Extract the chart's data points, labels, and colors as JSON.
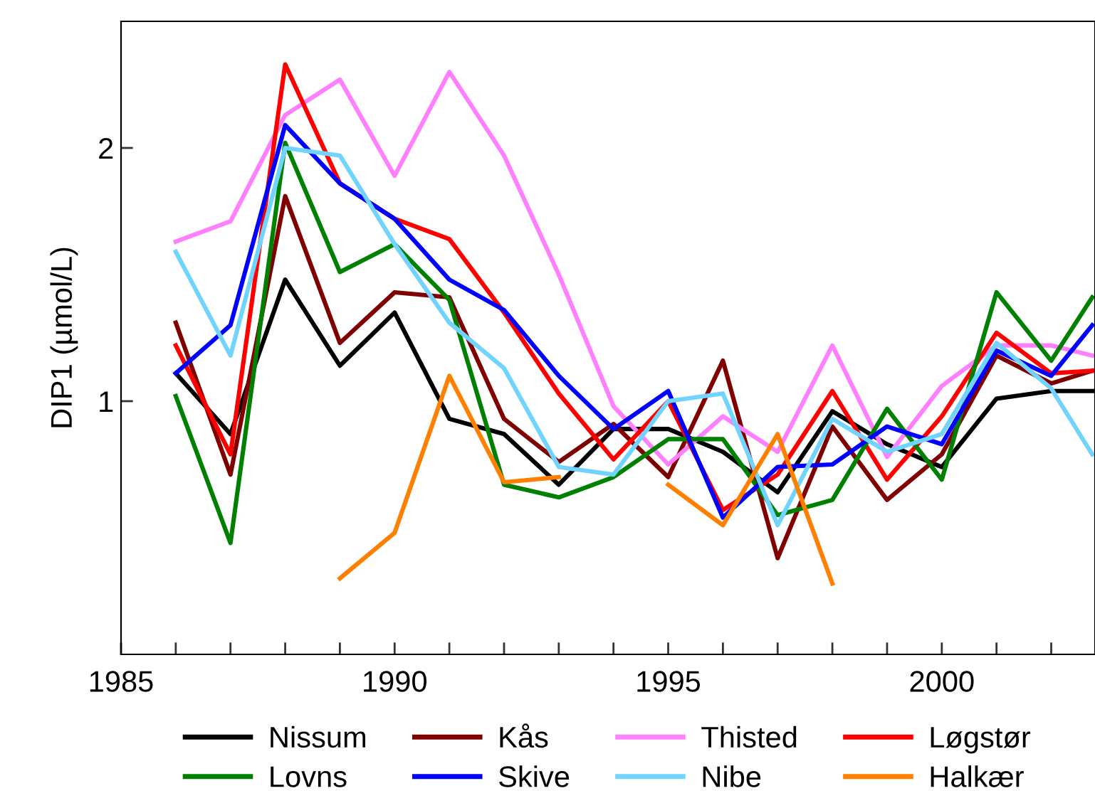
{
  "chart_data": {
    "type": "line",
    "ylabel": "DIP1 (µmol/L)",
    "x": [
      1986,
      1987,
      1988,
      1989,
      1990,
      1991,
      1992,
      1993,
      1994,
      1995,
      1996,
      1997,
      1998,
      1999,
      2000,
      2001,
      2002,
      2002.75
    ],
    "xlim": [
      1985,
      2002.8
    ],
    "xticks": [
      1985,
      {
        "value": 1986,
        "label": null
      },
      {
        "value": 1987,
        "label": null
      },
      {
        "value": 1988,
        "label": null
      },
      {
        "value": 1989,
        "label": null
      },
      1990,
      {
        "value": 1991,
        "label": null
      },
      {
        "value": 1992,
        "label": null
      },
      {
        "value": 1993,
        "label": null
      },
      {
        "value": 1994,
        "label": null
      },
      1995,
      {
        "value": 1996,
        "label": null
      },
      {
        "value": 1997,
        "label": null
      },
      {
        "value": 1998,
        "label": null
      },
      {
        "value": 1999,
        "label": null
      },
      2000,
      {
        "value": 2001,
        "label": null
      },
      {
        "value": 2002,
        "label": null
      }
    ],
    "ylim": [
      0,
      2.5
    ],
    "yticks": [
      1,
      2
    ],
    "grid": false,
    "legend": "bottom",
    "line_style": "solid",
    "marker": "none",
    "series": [
      {
        "name": "Nissum",
        "color": "#000000",
        "values": [
          1.11,
          0.87,
          1.48,
          1.14,
          1.35,
          0.93,
          0.87,
          0.67,
          0.89,
          0.89,
          0.8,
          0.64,
          0.96,
          0.83,
          0.74,
          1.01,
          1.04,
          1.04
        ]
      },
      {
        "name": "Kås",
        "color": "#800000",
        "values": [
          1.31,
          0.71,
          1.81,
          1.23,
          1.43,
          1.41,
          0.93,
          0.76,
          0.91,
          0.7,
          1.16,
          0.38,
          0.9,
          0.61,
          0.79,
          1.18,
          1.07,
          1.12
        ]
      },
      {
        "name": "Thisted",
        "color": "#ff80ff",
        "values": [
          1.63,
          1.71,
          2.13,
          2.27,
          1.89,
          2.3,
          1.97,
          1.5,
          0.98,
          0.75,
          0.94,
          0.8,
          1.22,
          0.78,
          1.06,
          1.22,
          1.22,
          1.18
        ]
      },
      {
        "name": "Løgstør",
        "color": "#ff0000",
        "values": [
          1.22,
          0.79,
          2.33,
          1.86,
          1.72,
          1.64,
          1.35,
          1.03,
          0.77,
          1.0,
          0.57,
          0.71,
          1.04,
          0.69,
          0.94,
          1.27,
          1.11,
          1.12
        ]
      },
      {
        "name": "Lovns",
        "color": "#008000",
        "values": [
          1.02,
          0.44,
          2.02,
          1.51,
          1.62,
          1.4,
          0.67,
          0.62,
          0.7,
          0.85,
          0.85,
          0.55,
          0.61,
          0.97,
          0.69,
          1.43,
          1.16,
          1.41
        ]
      },
      {
        "name": "Skive",
        "color": "#0000ff",
        "values": [
          1.11,
          1.3,
          2.09,
          1.86,
          1.72,
          1.48,
          1.36,
          1.1,
          0.89,
          1.04,
          0.54,
          0.74,
          0.75,
          0.9,
          0.83,
          1.2,
          1.1,
          1.3
        ]
      },
      {
        "name": "Nibe",
        "color": "#70d4ff",
        "values": [
          1.59,
          1.18,
          2.0,
          1.97,
          1.62,
          1.31,
          1.13,
          0.74,
          0.71,
          1.0,
          1.03,
          0.51,
          0.93,
          0.8,
          0.87,
          1.23,
          1.05,
          0.79
        ]
      },
      {
        "name": "Halkær",
        "color": "#ff8000",
        "values": [
          null,
          null,
          null,
          0.3,
          0.48,
          1.1,
          0.68,
          0.7,
          null,
          0.67,
          0.51,
          0.87,
          0.28,
          null,
          null,
          null,
          null,
          null
        ]
      }
    ]
  }
}
